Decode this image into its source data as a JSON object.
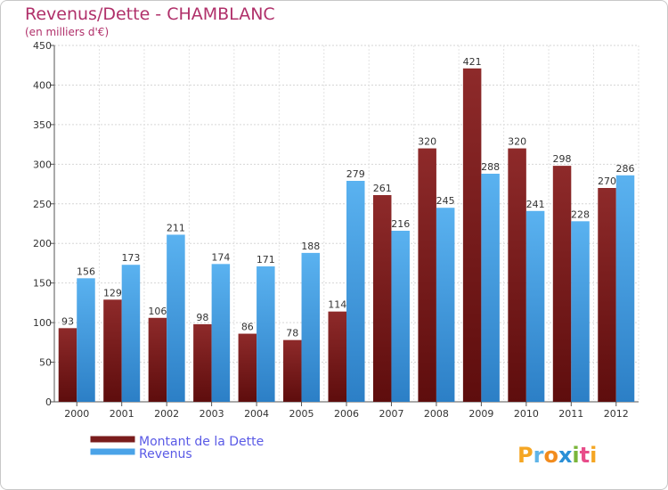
{
  "chart_data": {
    "type": "bar",
    "title": "Revenus/Dette - CHAMBLANC",
    "subtitle": "(en milliers d'€)",
    "categories": [
      "2000",
      "2001",
      "2002",
      "2003",
      "2004",
      "2005",
      "2006",
      "2007",
      "2008",
      "2009",
      "2010",
      "2011",
      "2012"
    ],
    "series": [
      {
        "name": "Montant de la Dette",
        "color": "#7a1c1c",
        "values": [
          93,
          129,
          106,
          98,
          86,
          78,
          114,
          261,
          320,
          421,
          320,
          298,
          270
        ]
      },
      {
        "name": "Revenus",
        "color": "#4aa3e8",
        "values": [
          156,
          173,
          211,
          174,
          171,
          188,
          279,
          216,
          245,
          288,
          241,
          228,
          286
        ]
      }
    ],
    "yticks": [
      "0",
      "50",
      "100",
      "150",
      "200",
      "250",
      "300",
      "350",
      "400",
      "450"
    ],
    "ylim": [
      0,
      450
    ],
    "grid": true,
    "legend": "bottom-left",
    "watermark": "Proxiti"
  }
}
